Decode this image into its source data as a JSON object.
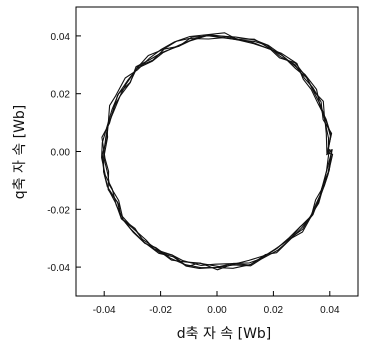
{
  "chart_data": {
    "type": "line",
    "title": "",
    "xlabel": "d축 자 속  [Wb]",
    "ylabel": "q축 자 속  [Wb]",
    "xlim": [
      -0.05,
      0.05
    ],
    "ylim": [
      -0.05,
      0.05
    ],
    "xticks": [
      -0.04,
      -0.02,
      0.0,
      0.02,
      0.04
    ],
    "yticks": [
      -0.04,
      -0.02,
      0.0,
      0.02,
      0.04
    ],
    "xtick_labels": [
      "-0.04",
      "-0.02",
      "0.00",
      "0.02",
      "0.04"
    ],
    "ytick_labels": [
      "-0.04",
      "-0.02",
      "0.00",
      "0.02",
      "0.04"
    ],
    "grid": false,
    "legend": "none",
    "series": [
      {
        "description_of_shape": "noisy closed flux-linkage locus",
        "x": [
          0.04,
          0.0397,
          0.0386,
          0.0368,
          0.0343,
          0.0311,
          0.0273,
          0.023,
          0.0182,
          0.0131,
          0.0077,
          0.0022,
          -0.0033,
          -0.0088,
          -0.0141,
          -0.0191,
          -0.0238,
          -0.0281,
          -0.0318,
          -0.0349,
          -0.0373,
          -0.0389,
          -0.0398,
          -0.04,
          -0.0394,
          -0.038,
          -0.0359,
          -0.0331,
          -0.0297,
          -0.0257,
          -0.0212,
          -0.0163,
          -0.011,
          -0.0055,
          0.0,
          0.0055,
          0.011,
          0.0163,
          0.0212,
          0.0257,
          0.0297,
          0.0331,
          0.0359,
          0.038,
          0.0394,
          0.04
        ],
        "y": [
          0.0,
          0.0055,
          0.011,
          0.0163,
          0.0212,
          0.0257,
          0.0297,
          0.0331,
          0.0359,
          0.038,
          0.0394,
          0.04,
          0.0399,
          0.039,
          0.0374,
          0.0351,
          0.0322,
          0.0286,
          0.0245,
          0.0199,
          0.0148,
          0.0094,
          0.0039,
          -0.0017,
          -0.0072,
          -0.0126,
          -0.0178,
          -0.0226,
          -0.027,
          -0.0309,
          -0.0342,
          -0.0367,
          -0.0386,
          -0.0396,
          -0.04,
          -0.0396,
          -0.0386,
          -0.0367,
          -0.0342,
          -0.0309,
          -0.027,
          -0.0226,
          -0.0178,
          -0.0126,
          -0.0072,
          0.0
        ]
      }
    ]
  }
}
